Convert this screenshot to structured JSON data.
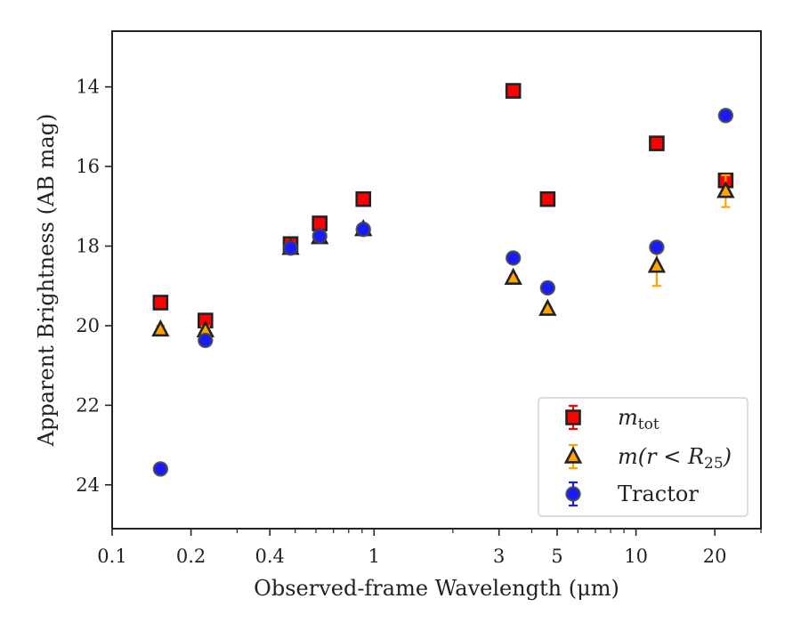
{
  "chart_data": {
    "type": "scatter",
    "title": "",
    "xlabel": "Observed-frame Wavelength (μm)",
    "ylabel": "Apparent Brightness (AB mag)",
    "xscale": "log",
    "xlim": [
      0.1,
      30
    ],
    "ylim": [
      25.1,
      12.6
    ],
    "y_inverted": true,
    "grid": false,
    "legend_position": "lower-right",
    "x_ticks": [
      {
        "value": 0.1,
        "label": "0.1"
      },
      {
        "value": 0.2,
        "label": "0.2"
      },
      {
        "value": 0.4,
        "label": "0.4"
      },
      {
        "value": 1,
        "label": "1"
      },
      {
        "value": 3,
        "label": "3"
      },
      {
        "value": 5,
        "label": "5"
      },
      {
        "value": 10,
        "label": "10"
      },
      {
        "value": 20,
        "label": "20"
      }
    ],
    "y_ticks": [
      {
        "value": 14,
        "label": "14"
      },
      {
        "value": 16,
        "label": "16"
      },
      {
        "value": 18,
        "label": "18"
      },
      {
        "value": 20,
        "label": "20"
      },
      {
        "value": 22,
        "label": "22"
      },
      {
        "value": 24,
        "label": "24"
      }
    ],
    "series": [
      {
        "name": "m_tot",
        "legend_main": "m",
        "legend_sub": "tot",
        "marker": "square",
        "face_color": "#ff0000",
        "edge_color": "#222222",
        "error_color": "#ff0000",
        "points": [
          {
            "x": 0.153,
            "y": 19.42
          },
          {
            "x": 0.227,
            "y": 19.87
          },
          {
            "x": 0.48,
            "y": 17.95
          },
          {
            "x": 0.62,
            "y": 17.43
          },
          {
            "x": 0.91,
            "y": 16.82
          },
          {
            "x": 3.4,
            "y": 14.1
          },
          {
            "x": 4.6,
            "y": 16.82
          },
          {
            "x": 12.0,
            "y": 15.42
          },
          {
            "x": 22.0,
            "y": 16.35
          }
        ]
      },
      {
        "name": "m(r < R_25)",
        "legend_main": "m(r < R",
        "legend_sub": "25",
        "legend_close": ")",
        "marker": "triangle",
        "face_color": "#ffa500",
        "edge_color": "#222222",
        "error_color": "#ffa500",
        "points": [
          {
            "x": 0.153,
            "y": 20.1,
            "err": 0.1
          },
          {
            "x": 0.227,
            "y": 20.12,
            "err": 0.1
          },
          {
            "x": 0.48,
            "y": 18.05,
            "err": 0.05
          },
          {
            "x": 0.62,
            "y": 17.78,
            "err": 0.05
          },
          {
            "x": 0.91,
            "y": 17.58,
            "err": 0.05
          },
          {
            "x": 3.4,
            "y": 18.8,
            "err": 0.05
          },
          {
            "x": 4.6,
            "y": 19.58,
            "err": 0.05
          },
          {
            "x": 12.0,
            "y": 18.5,
            "err": 0.5
          },
          {
            "x": 22.0,
            "y": 16.62,
            "err": 0.4
          }
        ]
      },
      {
        "name": "Tractor",
        "legend_main": "Tractor",
        "marker": "circle",
        "face_color": "#1a1aff",
        "edge_color": "#444444",
        "error_color": "#1a1aff",
        "points": [
          {
            "x": 0.153,
            "y": 23.6
          },
          {
            "x": 0.227,
            "y": 20.37
          },
          {
            "x": 0.48,
            "y": 18.05
          },
          {
            "x": 0.62,
            "y": 17.75
          },
          {
            "x": 0.91,
            "y": 17.58
          },
          {
            "x": 3.4,
            "y": 18.3
          },
          {
            "x": 4.6,
            "y": 19.05
          },
          {
            "x": 12.0,
            "y": 18.03
          },
          {
            "x": 22.0,
            "y": 14.72
          }
        ]
      }
    ]
  }
}
